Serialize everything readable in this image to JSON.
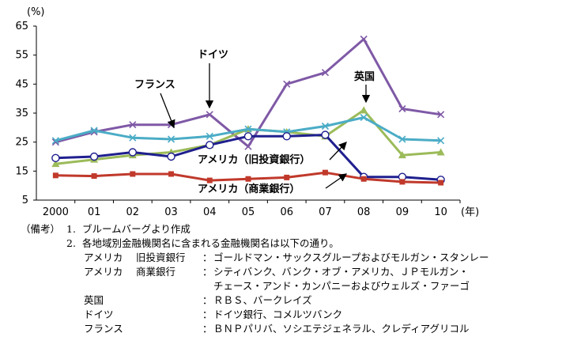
{
  "chart_data": {
    "type": "line",
    "y_unit": "(%)",
    "x_unit": "(年)",
    "categories": [
      "2000",
      "01",
      "02",
      "03",
      "04",
      "05",
      "06",
      "07",
      "08",
      "09",
      "10"
    ],
    "ylim": [
      5,
      65
    ],
    "yticks": [
      "65",
      "55",
      "45",
      "35",
      "25",
      "15",
      "5"
    ],
    "series": [
      {
        "key": "germany",
        "name": "ドイツ",
        "color": "#7f59a6",
        "marker": "x",
        "values": [
          25,
          28.5,
          31,
          31,
          34.5,
          23.5,
          45,
          49,
          60.5,
          36.5,
          34.5
        ]
      },
      {
        "key": "uk",
        "name": "英国",
        "color": "#9bbb59",
        "marker": "triangle",
        "values": [
          17.5,
          19,
          20.5,
          21.5,
          24,
          29.5,
          28.5,
          27,
          36,
          20.5,
          21.5
        ]
      },
      {
        "key": "france",
        "name": "フランス",
        "color": "#4bacc6",
        "marker": "x",
        "values": [
          25.5,
          29,
          26.5,
          26,
          27,
          29.5,
          28.5,
          30.5,
          33.5,
          26,
          25.5
        ]
      },
      {
        "key": "us_ib",
        "name": "アメリカ（旧投資銀行）",
        "color": "#1f1f8f",
        "marker": "circle",
        "values": [
          19.5,
          20,
          21.5,
          20,
          24,
          27,
          27,
          27.5,
          13,
          13,
          12
        ]
      },
      {
        "key": "us_cb",
        "name": "アメリカ（商業銀行）",
        "color": "#c0392b",
        "marker": "square",
        "values": [
          13.5,
          13.3,
          14,
          14,
          11.8,
          12.3,
          12.8,
          14.5,
          12.3,
          11.3,
          11
        ]
      }
    ],
    "annotations": {
      "germany": "ドイツ",
      "france": "フランス",
      "uk": "英国",
      "us_ib": "アメリカ（旧投資銀行）",
      "us_cb": "アメリカ（商業銀行）"
    },
    "grid": false,
    "legend": "none"
  },
  "notes": {
    "label": "（備考）",
    "items": [
      {
        "num": "1.",
        "text": "ブルームバーグより作成"
      },
      {
        "num": "2.",
        "text": "各地域別金融機関名に含まれる金融機関名は以下の通り。"
      }
    ],
    "institutions": [
      {
        "region": "アメリカ",
        "sub": "旧投資銀行",
        "sep": "：",
        "names": "ゴールドマン・サックスグループおよびモルガン・スタンレー"
      },
      {
        "region": "アメリカ",
        "sub": "商業銀行",
        "sep": "：",
        "names": "シティバンク、バンク・オブ・アメリカ、ＪＰモルガン・"
      },
      {
        "region": "",
        "sub": "",
        "sep": "",
        "names": "チェース・アンド・カンパニーおよびウェルズ・ファーゴ"
      },
      {
        "region": "英国",
        "sub": "",
        "sep": "：",
        "names": "ＲＢＳ、バークレイズ"
      },
      {
        "region": "ドイツ",
        "sub": "",
        "sep": "：",
        "names": "ドイツ銀行、コメルツバンク"
      },
      {
        "region": "フランス",
        "sub": "",
        "sep": "：",
        "names": "ＢＮＰパリバ、ソシエテジェネラル、クレディアグリコル"
      }
    ]
  }
}
